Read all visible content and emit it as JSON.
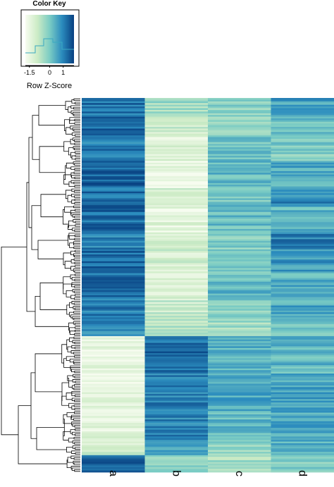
{
  "chart_data": {
    "type": "heatmap",
    "title": "",
    "color_key": {
      "title": "Color Key",
      "label": "Row Z-Score",
      "ticks": [
        "-1.5",
        "0",
        "1"
      ],
      "tick_values": [
        -1.5,
        0,
        1
      ],
      "range": [
        -1.8,
        1.8
      ],
      "colors": [
        "#f7fcf0",
        "#ccebc5",
        "#7bccc4",
        "#2b8cbe",
        "#084081"
      ]
    },
    "columns": [
      "a",
      "b",
      "c",
      "d"
    ],
    "row_count": 220,
    "dendrogram": "rows",
    "blocks": [
      {
        "rows": 11,
        "z": [
          1.2,
          -0.4,
          -0.2,
          0.6
        ]
      },
      {
        "rows": 12,
        "z": [
          1.3,
          -0.9,
          -0.3,
          0.2
        ]
      },
      {
        "rows": 14,
        "z": [
          1.1,
          -1.3,
          0.1,
          -0.1
        ]
      },
      {
        "rows": 16,
        "z": [
          1.4,
          -1.5,
          0.3,
          0.5
        ]
      },
      {
        "rows": 10,
        "z": [
          1.2,
          -1.2,
          0.0,
          0.9
        ]
      },
      {
        "rows": 16,
        "z": [
          1.3,
          -1.4,
          0.2,
          0.4
        ]
      },
      {
        "rows": 10,
        "z": [
          1.0,
          -1.0,
          -0.2,
          1.0
        ]
      },
      {
        "rows": 14,
        "z": [
          1.3,
          -1.1,
          0.1,
          0.7
        ]
      },
      {
        "rows": 16,
        "z": [
          1.2,
          -1.2,
          0.3,
          0.4
        ]
      },
      {
        "rows": 12,
        "z": [
          1.1,
          -0.9,
          -0.1,
          0.5
        ]
      },
      {
        "rows": 9,
        "z": [
          1.0,
          -0.6,
          -0.4,
          0.1
        ]
      },
      {
        "rows": 22,
        "z": [
          -1.4,
          1.3,
          0.4,
          0.3
        ]
      },
      {
        "rows": 22,
        "z": [
          -1.5,
          1.1,
          0.5,
          0.6
        ]
      },
      {
        "rows": 20,
        "z": [
          -1.3,
          1.0,
          0.3,
          0.5
        ]
      },
      {
        "rows": 6,
        "z": [
          -0.8,
          0.4,
          -0.3,
          0.2
        ]
      },
      {
        "rows": 10,
        "z": [
          1.4,
          -0.3,
          -0.5,
          -0.2
        ]
      }
    ]
  }
}
